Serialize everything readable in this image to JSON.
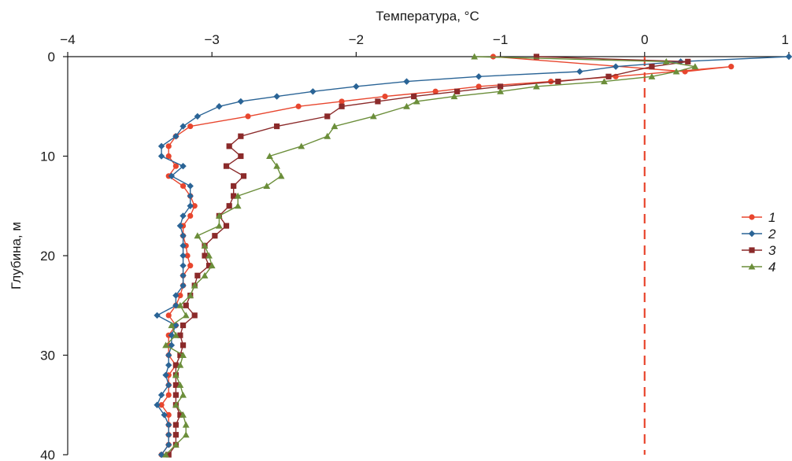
{
  "chart_data": {
    "type": "line",
    "xlabel": "Температура, °С",
    "ylabel": "Глубина, м",
    "xlim": [
      -4,
      1
    ],
    "ylim": [
      0,
      40
    ],
    "x_ticks": [
      "−4",
      "−3",
      "−2",
      "−1",
      "0",
      "1"
    ],
    "y_ticks": [
      "0",
      "10",
      "20",
      "30",
      "40"
    ],
    "x_axis_position": "top",
    "y_inverted": true,
    "legend_position": "right",
    "reference_line": {
      "x": 0,
      "style": "dashed",
      "color": "#e8462e"
    },
    "series": [
      {
        "name": "1",
        "color": "#e8462e",
        "marker": "circle",
        "points": [
          [
            -1.05,
            0
          ],
          [
            0.28,
            1.5
          ],
          [
            0.6,
            1
          ],
          [
            -0.2,
            2
          ],
          [
            -0.65,
            2.5
          ],
          [
            -1.15,
            3
          ],
          [
            -1.45,
            3.5
          ],
          [
            -1.8,
            4
          ],
          [
            -2.1,
            4.5
          ],
          [
            -2.4,
            5
          ],
          [
            -2.75,
            6
          ],
          [
            -3.15,
            7
          ],
          [
            -3.25,
            8
          ],
          [
            -3.3,
            9
          ],
          [
            -3.3,
            10
          ],
          [
            -3.25,
            11
          ],
          [
            -3.3,
            12
          ],
          [
            -3.2,
            13
          ],
          [
            -3.15,
            14
          ],
          [
            -3.12,
            15
          ],
          [
            -3.15,
            16
          ],
          [
            -3.2,
            17
          ],
          [
            -3.2,
            18
          ],
          [
            -3.18,
            19
          ],
          [
            -3.17,
            20
          ],
          [
            -3.15,
            21
          ],
          [
            -3.2,
            22
          ],
          [
            -3.2,
            23
          ],
          [
            -3.22,
            24
          ],
          [
            -3.25,
            25
          ],
          [
            -3.3,
            26
          ],
          [
            -3.25,
            27
          ],
          [
            -3.3,
            28
          ],
          [
            -3.3,
            29
          ],
          [
            -3.3,
            30
          ],
          [
            -3.25,
            31
          ],
          [
            -3.3,
            32
          ],
          [
            -3.3,
            33
          ],
          [
            -3.3,
            34
          ],
          [
            -3.35,
            35
          ],
          [
            -3.3,
            36
          ],
          [
            -3.3,
            37
          ],
          [
            -3.3,
            38
          ],
          [
            -3.3,
            39
          ],
          [
            -3.35,
            40
          ]
        ]
      },
      {
        "name": "2",
        "color": "#2a6496",
        "marker": "diamond",
        "points": [
          [
            1.0,
            0
          ],
          [
            0.25,
            0.5
          ],
          [
            -0.2,
            1
          ],
          [
            -0.45,
            1.5
          ],
          [
            -1.15,
            2
          ],
          [
            -1.65,
            2.5
          ],
          [
            -2.0,
            3
          ],
          [
            -2.3,
            3.5
          ],
          [
            -2.55,
            4
          ],
          [
            -2.8,
            4.5
          ],
          [
            -2.95,
            5
          ],
          [
            -3.1,
            6
          ],
          [
            -3.2,
            7
          ],
          [
            -3.25,
            8
          ],
          [
            -3.35,
            9
          ],
          [
            -3.35,
            10
          ],
          [
            -3.2,
            11
          ],
          [
            -3.28,
            12
          ],
          [
            -3.15,
            13
          ],
          [
            -3.15,
            14
          ],
          [
            -3.15,
            15
          ],
          [
            -3.2,
            16
          ],
          [
            -3.22,
            17
          ],
          [
            -3.2,
            18
          ],
          [
            -3.2,
            19
          ],
          [
            -3.2,
            20
          ],
          [
            -3.2,
            21
          ],
          [
            -3.2,
            22
          ],
          [
            -3.2,
            23
          ],
          [
            -3.25,
            24
          ],
          [
            -3.25,
            25
          ],
          [
            -3.38,
            26
          ],
          [
            -3.25,
            27
          ],
          [
            -3.28,
            28
          ],
          [
            -3.28,
            29
          ],
          [
            -3.3,
            30
          ],
          [
            -3.3,
            31
          ],
          [
            -3.32,
            32
          ],
          [
            -3.3,
            33
          ],
          [
            -3.35,
            34
          ],
          [
            -3.38,
            35
          ],
          [
            -3.33,
            36
          ],
          [
            -3.3,
            37
          ],
          [
            -3.3,
            38
          ],
          [
            -3.3,
            39
          ],
          [
            -3.35,
            40
          ]
        ]
      },
      {
        "name": "3",
        "color": "#8b2a2a",
        "marker": "square",
        "points": [
          [
            -0.75,
            0
          ],
          [
            0.3,
            0.5
          ],
          [
            0.05,
            1
          ],
          [
            -0.25,
            2
          ],
          [
            -0.6,
            2.5
          ],
          [
            -1.0,
            3
          ],
          [
            -1.3,
            3.5
          ],
          [
            -1.6,
            4
          ],
          [
            -1.85,
            4.5
          ],
          [
            -2.1,
            5
          ],
          [
            -2.2,
            6
          ],
          [
            -2.55,
            7
          ],
          [
            -2.8,
            8
          ],
          [
            -2.88,
            9
          ],
          [
            -2.8,
            10
          ],
          [
            -2.9,
            11
          ],
          [
            -2.78,
            12
          ],
          [
            -2.85,
            13
          ],
          [
            -2.85,
            14
          ],
          [
            -2.88,
            15
          ],
          [
            -2.95,
            16
          ],
          [
            -2.9,
            17
          ],
          [
            -2.98,
            18
          ],
          [
            -3.05,
            19
          ],
          [
            -3.05,
            20
          ],
          [
            -3.02,
            21
          ],
          [
            -3.1,
            22
          ],
          [
            -3.12,
            23
          ],
          [
            -3.15,
            24
          ],
          [
            -3.18,
            25
          ],
          [
            -3.12,
            26
          ],
          [
            -3.2,
            27
          ],
          [
            -3.22,
            28
          ],
          [
            -3.2,
            29
          ],
          [
            -3.22,
            30
          ],
          [
            -3.25,
            31
          ],
          [
            -3.25,
            32
          ],
          [
            -3.25,
            33
          ],
          [
            -3.25,
            34
          ],
          [
            -3.25,
            35
          ],
          [
            -3.22,
            36
          ],
          [
            -3.25,
            37
          ],
          [
            -3.25,
            38
          ],
          [
            -3.25,
            39
          ],
          [
            -3.3,
            40
          ]
        ]
      },
      {
        "name": "4",
        "color": "#6b8e3a",
        "marker": "triangle",
        "points": [
          [
            -1.18,
            0
          ],
          [
            0.15,
            0.5
          ],
          [
            0.35,
            1
          ],
          [
            0.22,
            1.5
          ],
          [
            0.05,
            2
          ],
          [
            -0.28,
            2.5
          ],
          [
            -0.75,
            3
          ],
          [
            -1.0,
            3.5
          ],
          [
            -1.32,
            4
          ],
          [
            -1.58,
            4.5
          ],
          [
            -1.65,
            5
          ],
          [
            -1.88,
            6
          ],
          [
            -2.15,
            7
          ],
          [
            -2.2,
            8
          ],
          [
            -2.38,
            9
          ],
          [
            -2.6,
            10
          ],
          [
            -2.55,
            11
          ],
          [
            -2.52,
            12
          ],
          [
            -2.62,
            13
          ],
          [
            -2.82,
            14
          ],
          [
            -2.82,
            15
          ],
          [
            -2.95,
            16
          ],
          [
            -2.95,
            17
          ],
          [
            -3.1,
            18
          ],
          [
            -3.05,
            19
          ],
          [
            -3.02,
            20
          ],
          [
            -3.0,
            21
          ],
          [
            -3.05,
            22
          ],
          [
            -3.12,
            23
          ],
          [
            -3.15,
            24
          ],
          [
            -3.22,
            25
          ],
          [
            -3.18,
            26
          ],
          [
            -3.28,
            27
          ],
          [
            -3.25,
            28
          ],
          [
            -3.32,
            29
          ],
          [
            -3.2,
            30
          ],
          [
            -3.22,
            31
          ],
          [
            -3.25,
            32
          ],
          [
            -3.22,
            33
          ],
          [
            -3.2,
            34
          ],
          [
            -3.25,
            35
          ],
          [
            -3.2,
            36
          ],
          [
            -3.18,
            37
          ],
          [
            -3.18,
            38
          ],
          [
            -3.25,
            39
          ],
          [
            -3.32,
            40
          ]
        ]
      }
    ]
  }
}
